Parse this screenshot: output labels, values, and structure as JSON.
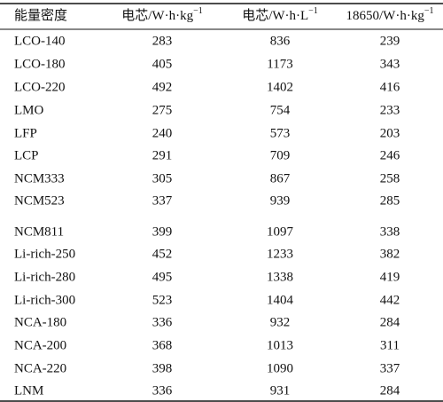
{
  "table": {
    "header": [
      {
        "text": "能量密度"
      },
      {
        "text": "电芯/W·h·kg",
        "sup": "−1"
      },
      {
        "text": "电芯/W·h·L",
        "sup": "−1"
      },
      {
        "text": "18650/W·h·kg",
        "sup": "−1"
      }
    ],
    "rows": [
      [
        "LCO-140",
        "283",
        "836",
        "239"
      ],
      [
        "LCO-180",
        "405",
        "1173",
        "343"
      ],
      [
        "LCO-220",
        "492",
        "1402",
        "416"
      ],
      [
        "LMO",
        "275",
        "754",
        "233"
      ],
      [
        "LFP",
        "240",
        "573",
        "203"
      ],
      [
        "LCP",
        "291",
        "709",
        "246"
      ],
      [
        "NCM333",
        "305",
        "867",
        "258"
      ],
      [
        "NCM523",
        "337",
        "939",
        "285"
      ],
      [
        "NCM811",
        "399",
        "1097",
        "338"
      ],
      [
        "Li-rich-250",
        "452",
        "1233",
        "382"
      ],
      [
        "Li-rich-280",
        "495",
        "1338",
        "419"
      ],
      [
        "Li-rich-300",
        "523",
        "1404",
        "442"
      ],
      [
        "NCA-180",
        "336",
        "932",
        "284"
      ],
      [
        "NCA-200",
        "368",
        "1013",
        "311"
      ],
      [
        "NCA-220",
        "398",
        "1090",
        "337"
      ],
      [
        "LNM",
        "336",
        "931",
        "284"
      ]
    ]
  }
}
